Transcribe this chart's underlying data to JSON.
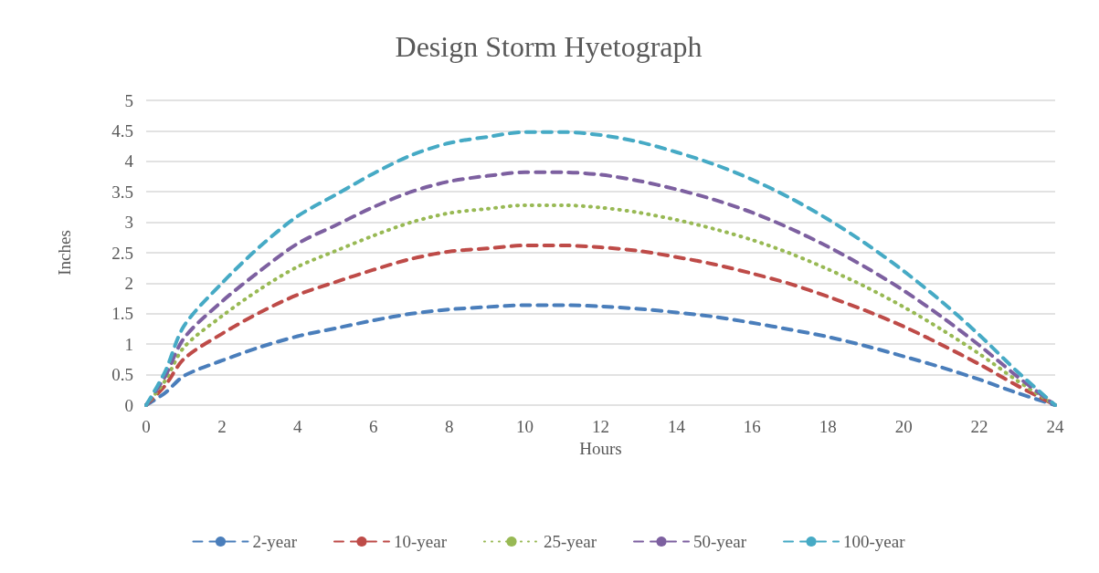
{
  "chart_data": {
    "type": "line",
    "title": "Design Storm Hyetograph",
    "xlabel": "Hours",
    "ylabel": "Inches",
    "x": [
      0,
      0.5,
      1,
      2,
      3,
      4,
      5,
      6,
      7,
      8,
      9,
      10,
      11,
      12,
      13,
      14,
      15,
      16,
      17,
      18,
      19,
      20,
      21,
      22,
      23,
      24
    ],
    "series": [
      {
        "name": "2-year",
        "color": "#4a7ebb",
        "line_style": "dashed",
        "values": [
          0,
          0.2,
          0.48,
          0.73,
          0.95,
          1.13,
          1.26,
          1.39,
          1.5,
          1.57,
          1.61,
          1.64,
          1.64,
          1.62,
          1.58,
          1.52,
          1.45,
          1.35,
          1.24,
          1.12,
          0.97,
          0.8,
          0.62,
          0.42,
          0.2,
          0
        ]
      },
      {
        "name": "10-year",
        "color": "#be4b48",
        "line_style": "dashed",
        "values": [
          0,
          0.32,
          0.76,
          1.17,
          1.52,
          1.81,
          2.02,
          2.22,
          2.4,
          2.52,
          2.57,
          2.62,
          2.62,
          2.59,
          2.53,
          2.43,
          2.31,
          2.16,
          1.99,
          1.78,
          1.55,
          1.29,
          0.99,
          0.67,
          0.32,
          0
        ]
      },
      {
        "name": "25-year",
        "color": "#98b954",
        "line_style": "dotted",
        "values": [
          0,
          0.4,
          0.95,
          1.46,
          1.9,
          2.27,
          2.53,
          2.78,
          3.0,
          3.15,
          3.22,
          3.28,
          3.28,
          3.24,
          3.16,
          3.04,
          2.89,
          2.71,
          2.49,
          2.23,
          1.94,
          1.61,
          1.24,
          0.84,
          0.4,
          0
        ]
      },
      {
        "name": "50-year",
        "color": "#7d60a0",
        "line_style": "dashed",
        "values": [
          0,
          0.47,
          1.1,
          1.7,
          2.2,
          2.65,
          2.95,
          3.25,
          3.5,
          3.67,
          3.76,
          3.82,
          3.82,
          3.78,
          3.68,
          3.54,
          3.37,
          3.16,
          2.9,
          2.6,
          2.26,
          1.88,
          1.45,
          0.98,
          0.47,
          0
        ]
      },
      {
        "name": "100-year",
        "color": "#46aac5",
        "line_style": "dashed",
        "values": [
          0,
          0.55,
          1.3,
          2.0,
          2.6,
          3.1,
          3.45,
          3.8,
          4.1,
          4.3,
          4.4,
          4.48,
          4.48,
          4.43,
          4.32,
          4.15,
          3.95,
          3.7,
          3.4,
          3.05,
          2.65,
          2.2,
          1.7,
          1.15,
          0.55,
          0
        ]
      }
    ],
    "xlim": [
      0,
      24
    ],
    "xticks": [
      0,
      2,
      4,
      6,
      8,
      10,
      12,
      14,
      16,
      18,
      20,
      22,
      24
    ],
    "ylim": [
      0,
      5
    ],
    "yticks": [
      0,
      0.5,
      1,
      1.5,
      2,
      2.5,
      3,
      3.5,
      4,
      4.5,
      5
    ],
    "grid": "y",
    "legend": "bottom",
    "marker": "none"
  }
}
